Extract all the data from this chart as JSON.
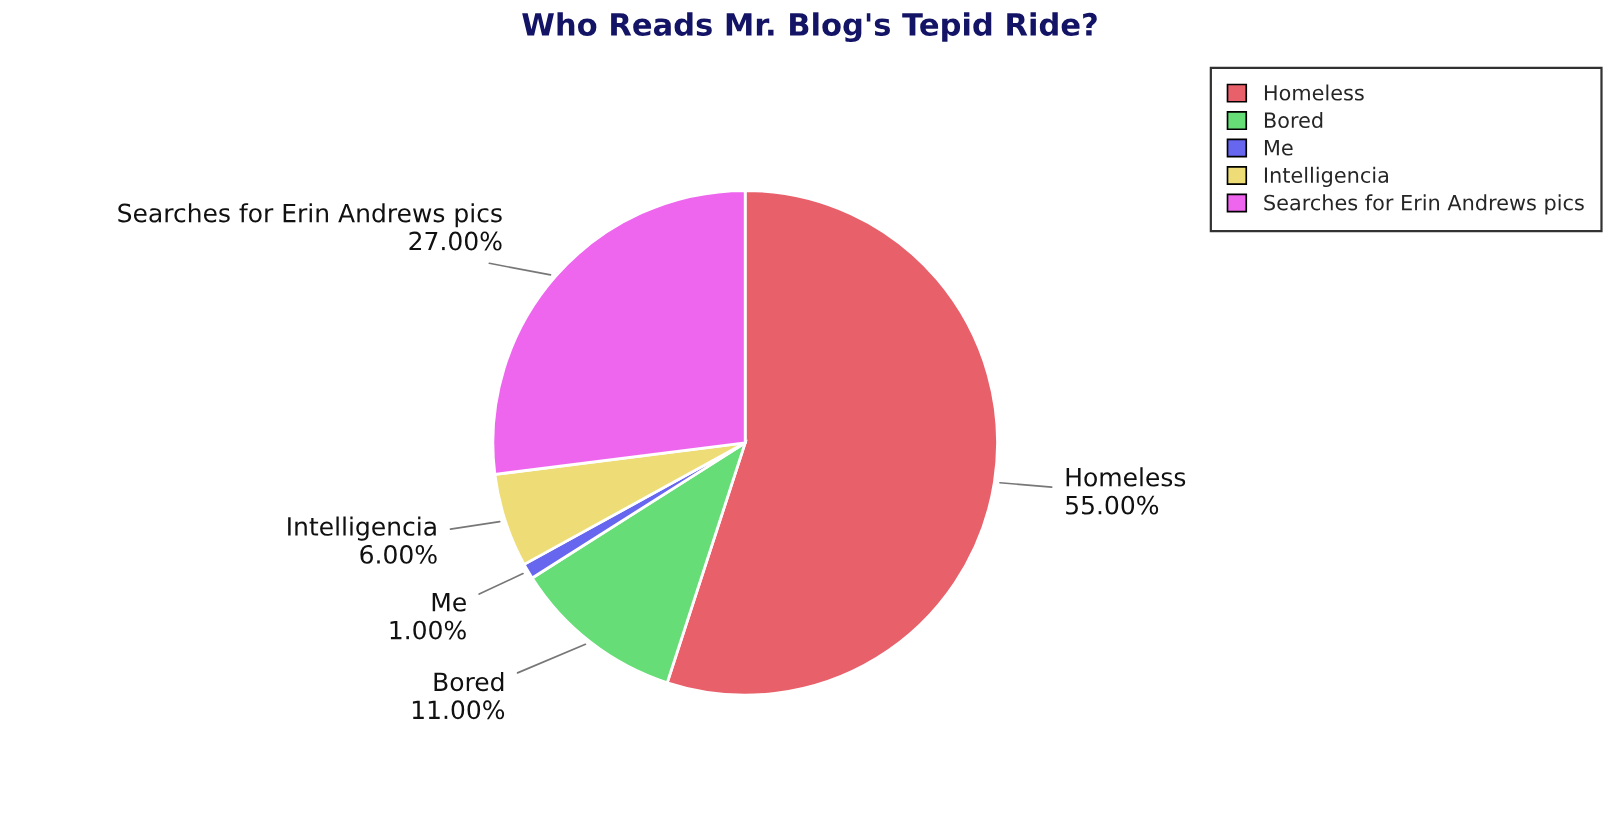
{
  "chart_data": {
    "type": "pie",
    "title": "Who Reads Mr. Blog's Tepid Ride?",
    "categories": [
      "Homeless",
      "Bored",
      "Me",
      "Intelligencia",
      "Searches for Erin Andrews pics"
    ],
    "values": [
      55,
      11,
      1,
      6,
      27
    ],
    "value_labels": [
      "55.00%",
      "11.00%",
      "1.00%",
      "6.00%",
      "27.00%"
    ],
    "colors": [
      "#e8606a",
      "#66dd77",
      "#6666ee",
      "#eedd77",
      "#ee66ee"
    ],
    "legend": "top right"
  }
}
